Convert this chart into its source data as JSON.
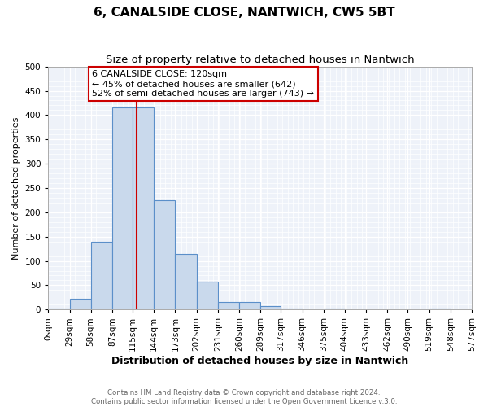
{
  "title": "6, CANALSIDE CLOSE, NANTWICH, CW5 5BT",
  "subtitle": "Size of property relative to detached houses in Nantwich",
  "xlabel": "Distribution of detached houses by size in Nantwich",
  "ylabel": "Number of detached properties",
  "bin_edges": [
    0,
    29,
    58,
    87,
    115,
    144,
    173,
    202,
    231,
    260,
    289,
    317,
    346,
    375,
    404,
    433,
    462,
    490,
    519,
    548,
    577
  ],
  "bin_heights": [
    2,
    22,
    140,
    415,
    415,
    225,
    115,
    57,
    15,
    16,
    7,
    2,
    0,
    2,
    0,
    0,
    0,
    0,
    2,
    0
  ],
  "bar_facecolor": "#c9d9ec",
  "bar_edgecolor": "#5b8fc9",
  "vline_x": 120,
  "vline_color": "#cc0000",
  "annotation_text": "6 CANALSIDE CLOSE: 120sqm\n← 45% of detached houses are smaller (642)\n52% of semi-detached houses are larger (743) →",
  "annotation_box_edgecolor": "#cc0000",
  "annotation_box_facecolor": "#ffffff",
  "ylim": [
    0,
    500
  ],
  "yticks": [
    0,
    50,
    100,
    150,
    200,
    250,
    300,
    350,
    400,
    450,
    500
  ],
  "background_color": "#eef2f9",
  "grid_color": "#ffffff",
  "footer_text": "Contains HM Land Registry data © Crown copyright and database right 2024.\nContains public sector information licensed under the Open Government Licence v.3.0.",
  "title_fontsize": 11,
  "subtitle_fontsize": 9.5,
  "xlabel_fontsize": 9,
  "ylabel_fontsize": 8,
  "tick_label_fontsize": 7.5,
  "annotation_fontsize": 8
}
